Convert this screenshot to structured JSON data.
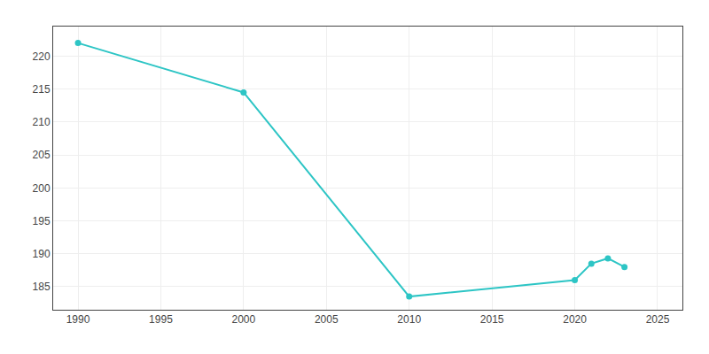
{
  "chart_data": {
    "type": "line",
    "x": [
      1990,
      2000,
      2010,
      2020,
      2021,
      2022,
      2023
    ],
    "values": [
      222.0,
      214.5,
      183.5,
      186.0,
      188.5,
      189.3,
      188.0
    ],
    "color": "#2DC5C5",
    "marker": "circle",
    "xlim": [
      1988.5,
      2026.5
    ],
    "ylim": [
      181.5,
      224.5
    ],
    "xticks": [
      1990,
      1995,
      2000,
      2005,
      2010,
      2015,
      2020,
      2025
    ],
    "yticks": [
      185,
      190,
      195,
      200,
      205,
      210,
      215,
      220
    ],
    "grid": true
  }
}
